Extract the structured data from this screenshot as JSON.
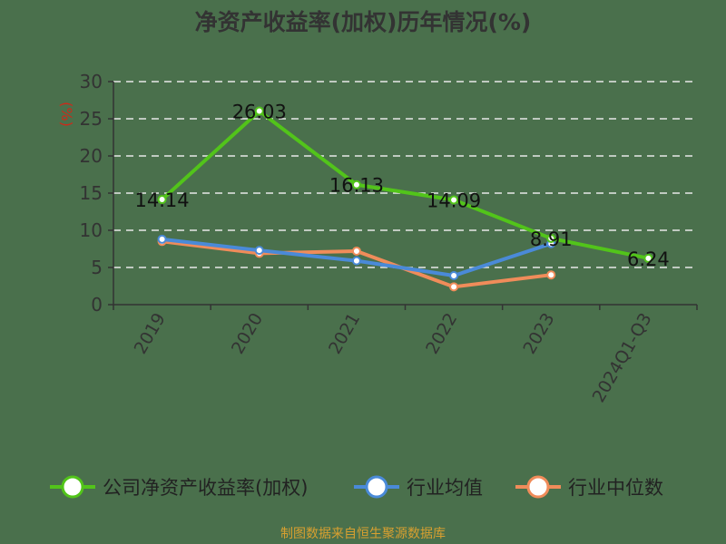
{
  "chart_data": {
    "type": "line",
    "title": "净资产收益率(加权)历年情况(%)",
    "ylabel": "(%)",
    "xlabel": "",
    "categories": [
      "2019",
      "2020",
      "2021",
      "2022",
      "2023",
      "2024Q1-Q3"
    ],
    "ylim": [
      0,
      30
    ],
    "yticks": [
      0,
      5,
      10,
      15,
      20,
      25,
      30
    ],
    "grid": true,
    "legend_position": "bottom",
    "series": [
      {
        "name": "公司净资产收益率(加权)",
        "color": "#52c41a",
        "values": [
          14.14,
          26.03,
          16.13,
          14.09,
          8.91,
          6.24
        ],
        "labels": [
          "14.14",
          "26.03",
          "16.13",
          "14.09",
          "8.91",
          "6.24"
        ]
      },
      {
        "name": "行业均值",
        "color": "#4a8ad8",
        "values": [
          8.8,
          7.3,
          5.9,
          3.9,
          8.2,
          null
        ]
      },
      {
        "name": "行业中位数",
        "color": "#f08c5a",
        "values": [
          8.5,
          6.9,
          7.2,
          2.4,
          4.0,
          null
        ]
      }
    ]
  },
  "footer": "制图数据来自恒生聚源数据库"
}
